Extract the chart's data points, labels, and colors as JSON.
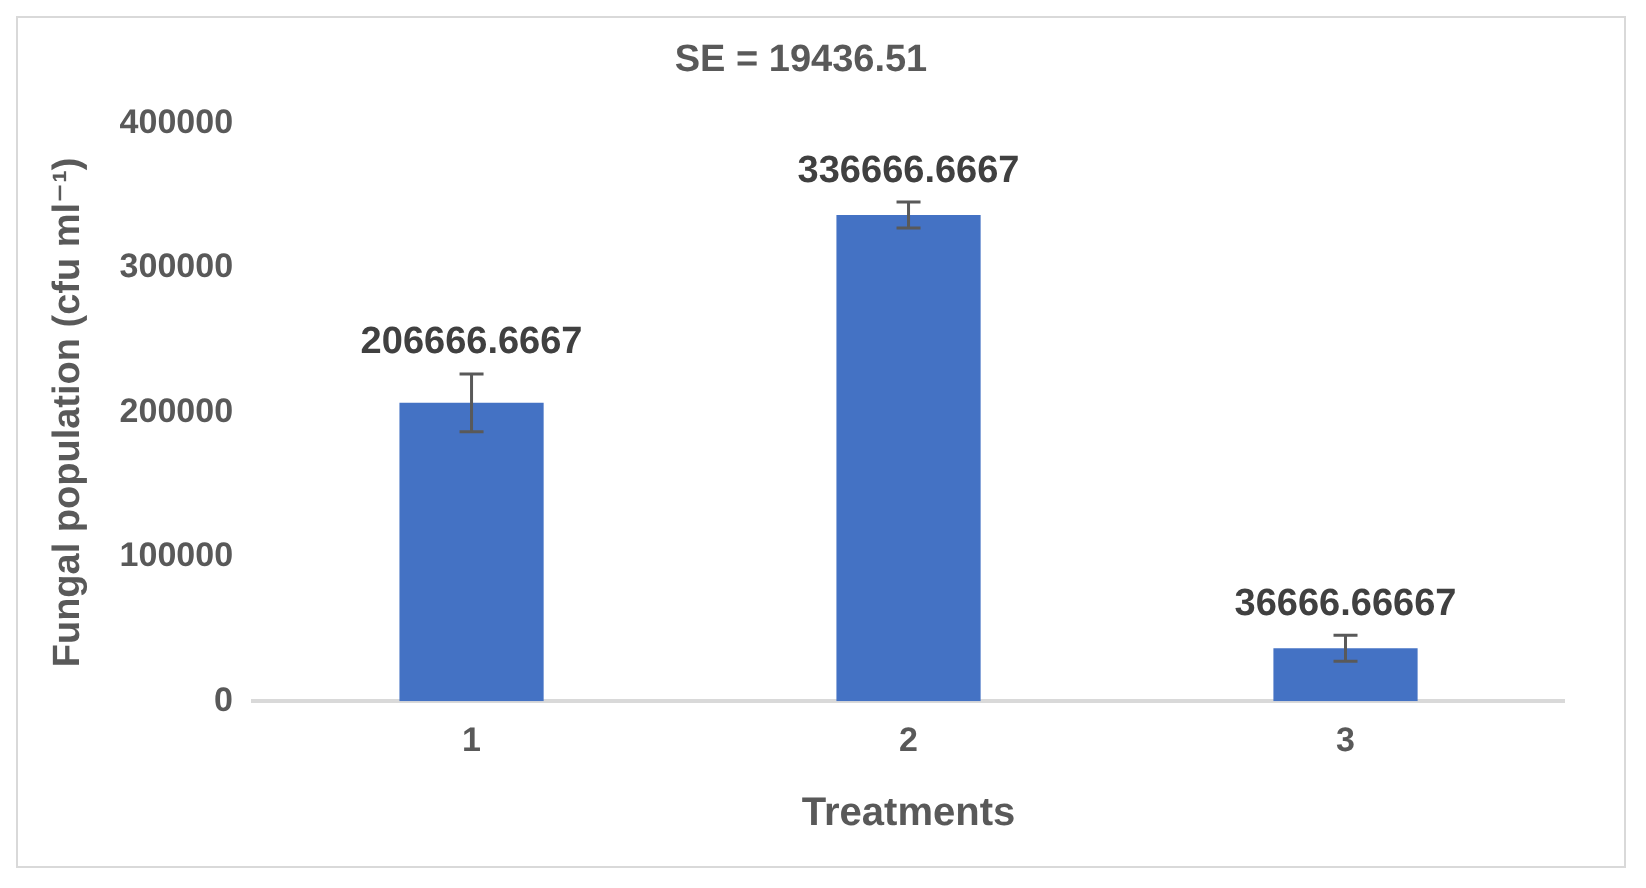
{
  "chart_data": {
    "type": "bar",
    "title": "SE = 19436.51",
    "xlabel": "Treatments",
    "ylabel": "Fungal population (cfu ml⁻¹)",
    "categories": [
      "1",
      "2",
      "3"
    ],
    "values": [
      206666.6667,
      336666.6667,
      36666.66667
    ],
    "errors": [
      20000,
      9000,
      9000
    ],
    "color": "#4472c4",
    "ylim": [
      0,
      400000
    ],
    "yticks": [
      0,
      100000,
      200000,
      300000,
      400000
    ],
    "grid": false,
    "data_labels": true
  }
}
